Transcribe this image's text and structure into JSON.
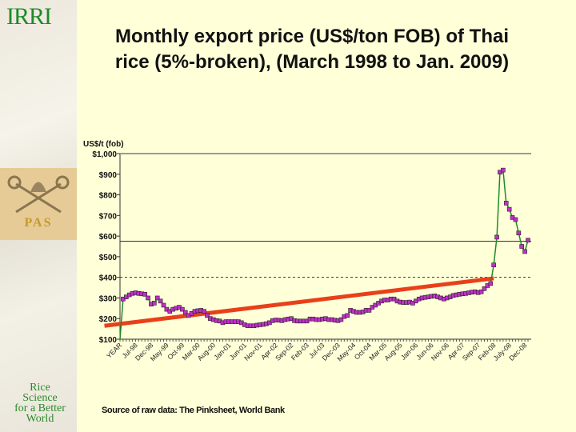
{
  "slide": {
    "logo": "IRRI",
    "seal_text": "PAS",
    "tagline": [
      "Rice",
      "Science",
      "for a Better",
      "World"
    ],
    "title_line1": "Monthly export price (US$/ton FOB) of Thai",
    "title_line2": "rice (5%-broken), (March 1998 to Jan. 2009)",
    "source": "Source of raw data: The Pinksheet, World Bank"
  },
  "chart_data": {
    "type": "line",
    "title": "Monthly export price (US$/ton FOB) of Thai rice (5%-broken), (March 1998 to Jan. 2009)",
    "ylabel": "US$/t (fob)",
    "xlabel": "",
    "ylim": [
      100,
      1000
    ],
    "ytick_labels": [
      "$100",
      "$200",
      "$300",
      "$400",
      "$500",
      "$600",
      "$700",
      "$800",
      "$900",
      "$1,000"
    ],
    "ytick_values": [
      100,
      200,
      300,
      400,
      500,
      600,
      700,
      800,
      900,
      1000
    ],
    "xtick_labels": [
      "YEAR",
      "Jul-98",
      "Dec-98",
      "May-99",
      "Oct-99",
      "Mar-00",
      "Aug-00",
      "Jan-01",
      "Jun-01",
      "Nov-01",
      "Apr-02",
      "Sep-02",
      "Feb-03",
      "Jul-03",
      "Dec-03",
      "May-04",
      "Oct-04",
      "Mar-05",
      "Aug-05",
      "Jan-06",
      "Jun-06",
      "Nov-06",
      "Apr-07",
      "Sep-07",
      "Feb-08",
      "July-08",
      "Dec-08"
    ],
    "start_month": "Mar-98",
    "end_month": "Jan-09",
    "series": [
      {
        "name": "Thai 5%-broken export price",
        "color": "#1f8a2a",
        "marker_color": "#c030c8",
        "values": [
          295,
          305,
          315,
          322,
          325,
          322,
          320,
          318,
          300,
          270,
          275,
          300,
          285,
          265,
          245,
          235,
          245,
          250,
          255,
          245,
          230,
          215,
          225,
          235,
          238,
          240,
          235,
          215,
          200,
          195,
          190,
          188,
          180,
          185,
          185,
          185,
          185,
          185,
          180,
          170,
          165,
          165,
          165,
          168,
          170,
          172,
          175,
          180,
          190,
          193,
          192,
          190,
          195,
          198,
          200,
          190,
          188,
          188,
          188,
          188,
          198,
          198,
          195,
          195,
          198,
          200,
          195,
          195,
          192,
          190,
          195,
          210,
          215,
          240,
          235,
          230,
          230,
          232,
          240,
          240,
          255,
          265,
          275,
          285,
          290,
          290,
          295,
          295,
          285,
          280,
          278,
          278,
          280,
          275,
          285,
          295,
          300,
          303,
          305,
          308,
          310,
          305,
          300,
          295,
          300,
          305,
          312,
          315,
          318,
          320,
          322,
          325,
          328,
          330,
          326,
          330,
          345,
          360,
          370,
          460,
          595,
          910,
          920,
          760,
          730,
          690,
          680,
          615,
          550,
          525,
          580
        ]
      }
    ],
    "trend_line": {
      "color": "#e8401a",
      "from": {
        "month": "Jul-01",
        "value": 165
      },
      "to": {
        "month": "Feb-08",
        "value": 395
      }
    },
    "reference_lines": [
      {
        "value": 400,
        "style": "dashed"
      },
      {
        "value": 575,
        "style": "solid"
      }
    ],
    "grid": false,
    "legend": "none"
  }
}
